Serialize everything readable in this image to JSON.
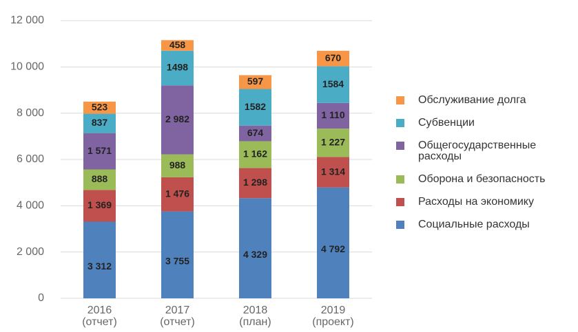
{
  "chart_data": {
    "type": "stacked_bar",
    "categories": [
      [
        "2016",
        "(отчет)"
      ],
      [
        "2017",
        "(отчет)"
      ],
      [
        "2018",
        "(план)"
      ],
      [
        "2019",
        "(проект)"
      ]
    ],
    "series": [
      {
        "name": "Социальные расходы",
        "color": "#4f81bd",
        "values": [
          3312,
          3755,
          4329,
          4792
        ],
        "value_labels": [
          "3 312",
          "3 755",
          "4 329",
          "4 792"
        ]
      },
      {
        "name": "Расходы на экономику",
        "color": "#c0504d",
        "values": [
          1369,
          1476,
          1298,
          1314
        ],
        "value_labels": [
          "1 369",
          "1 476",
          "1 298",
          "1 314"
        ]
      },
      {
        "name": "Оборона и безопасность",
        "color": "#9bbb59",
        "values": [
          888,
          988,
          1162,
          1227
        ],
        "value_labels": [
          "888",
          "988",
          "1 162",
          "1 227"
        ]
      },
      {
        "name": "Общегосударственные расходы",
        "color": "#8064a2",
        "values": [
          1571,
          2982,
          674,
          1110
        ],
        "value_labels": [
          "1 571",
          "2 982",
          "674",
          "1 110"
        ]
      },
      {
        "name": "Субвенции",
        "color": "#4bacc6",
        "values": [
          837,
          1498,
          1582,
          1584
        ]
      },
      {
        "name": "Обслуживание долга",
        "color": "#f79646",
        "values": [
          523,
          458,
          597,
          670
        ]
      }
    ],
    "ylim": [
      0,
      12000
    ],
    "yticks": [
      0,
      {
        "value": 2000,
        "label": "2 000"
      },
      {
        "value": 4000,
        "label": "4 000"
      },
      {
        "value": 6000,
        "label": "6 000"
      },
      {
        "value": 8000,
        "label": "8 000"
      },
      {
        "value": 10000,
        "label": "10 000"
      },
      {
        "value": 12000,
        "label": "12 000"
      }
    ],
    "grid": true,
    "legend": "right"
  }
}
